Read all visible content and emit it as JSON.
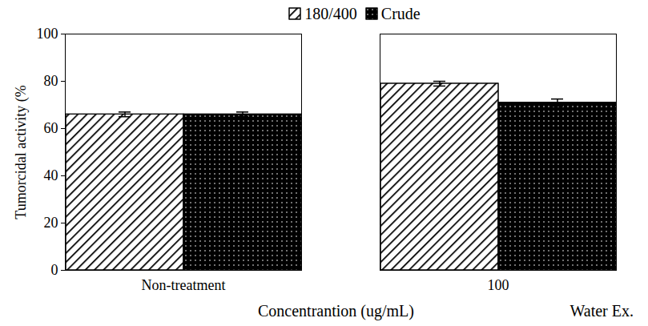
{
  "chart_data": {
    "type": "bar",
    "categories": [
      "Non-treatment",
      "100"
    ],
    "series": [
      {
        "name": "180/400",
        "color": "#ffffff",
        "values": [
          66,
          79
        ],
        "errors": [
          1,
          1
        ]
      },
      {
        "name": "Crude",
        "color": "#000000",
        "values": [
          66,
          71
        ],
        "errors": [
          1,
          1.5
        ]
      }
    ],
    "y_label": "Tumorcidal activity (%",
    "x_label": "Concentrantion (ug/mL)",
    "annotation": "Water Ex.",
    "ylim": [
      0,
      100
    ],
    "yticks": [
      0,
      20,
      40,
      60,
      80,
      100
    ],
    "legend": "top",
    "grid": false
  }
}
